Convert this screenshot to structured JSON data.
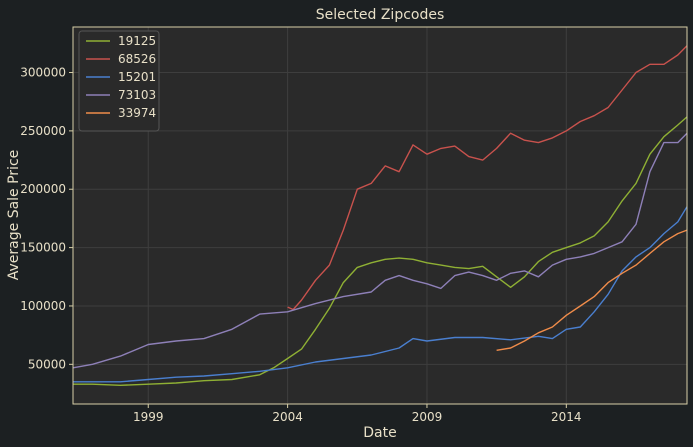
{
  "chart_data": {
    "type": "line",
    "title": "Selected Zipcodes",
    "xlabel": "Date",
    "ylabel": "Average Sale Price",
    "xlim": [
      1996.3,
      2018.33
    ],
    "ylim": [
      16000,
      339000
    ],
    "x_ticks": [
      1999,
      2004,
      2009,
      2014
    ],
    "y_ticks": [
      50000,
      100000,
      150000,
      200000,
      250000,
      300000
    ],
    "grid": true,
    "legend_position": "top-left",
    "series": [
      {
        "name": "19125",
        "color": "#8fb034",
        "x": [
          1996.3,
          1997,
          1998,
          1999,
          2000,
          2001,
          2002,
          2003,
          2003.5,
          2004,
          2004.5,
          2005,
          2005.5,
          2006,
          2006.5,
          2007,
          2007.5,
          2008,
          2008.5,
          2009,
          2009.5,
          2010,
          2010.5,
          2011,
          2011.5,
          2012,
          2012.5,
          2013,
          2013.5,
          2014,
          2014.5,
          2015,
          2015.5,
          2016,
          2016.5,
          2017,
          2017.5,
          2018,
          2018.33
        ],
        "y": [
          33000,
          33000,
          32000,
          33000,
          34000,
          36000,
          37000,
          41000,
          47000,
          55000,
          63000,
          80000,
          98000,
          120000,
          133000,
          137000,
          140000,
          141000,
          140000,
          137000,
          135000,
          133000,
          132000,
          134000,
          125000,
          116000,
          125000,
          138000,
          146000,
          150000,
          154000,
          160000,
          172000,
          190000,
          205000,
          230000,
          245000,
          255000,
          262000
        ]
      },
      {
        "name": "68526",
        "color": "#c8524d",
        "x": [
          2004,
          2004.2,
          2004.5,
          2005,
          2005.5,
          2006,
          2006.5,
          2007,
          2007.5,
          2008,
          2008.5,
          2009,
          2009.5,
          2010,
          2010.5,
          2011,
          2011.5,
          2012,
          2012.5,
          2013,
          2013.5,
          2014,
          2014.5,
          2015,
          2015.5,
          2016,
          2016.5,
          2017,
          2017.5,
          2018,
          2018.33
        ],
        "y": [
          99000,
          97000,
          105000,
          122000,
          135000,
          165000,
          200000,
          205000,
          220000,
          215000,
          238000,
          230000,
          235000,
          237000,
          228000,
          225000,
          235000,
          248000,
          242000,
          240000,
          244000,
          250000,
          258000,
          263000,
          270000,
          285000,
          300000,
          307000,
          307000,
          315000,
          323000
        ]
      },
      {
        "name": "15201",
        "color": "#4a7fcf",
        "x": [
          1996.3,
          1997,
          1998,
          1999,
          2000,
          2001,
          2002,
          2003,
          2004,
          2005,
          2006,
          2007,
          2008,
          2008.5,
          2009,
          2010,
          2011,
          2012,
          2013,
          2013.5,
          2014,
          2014.5,
          2015,
          2015.5,
          2016,
          2016.5,
          2017,
          2017.5,
          2018,
          2018.33
        ],
        "y": [
          35000,
          35000,
          35000,
          37000,
          39000,
          40000,
          42000,
          44000,
          47000,
          52000,
          55000,
          58000,
          64000,
          72000,
          70000,
          73000,
          73000,
          71000,
          74000,
          72000,
          80000,
          82000,
          95000,
          110000,
          130000,
          142000,
          150000,
          162000,
          172000,
          185000
        ]
      },
      {
        "name": "73103",
        "color": "#8e80b8",
        "x": [
          1996.3,
          1997,
          1998,
          1999,
          2000,
          2001,
          2002,
          2003,
          2004,
          2005,
          2006,
          2007,
          2007.5,
          2008,
          2008.5,
          2009,
          2009.5,
          2010,
          2010.5,
          2011,
          2011.5,
          2012,
          2012.5,
          2013,
          2013.5,
          2014,
          2014.5,
          2015,
          2015.5,
          2016,
          2016.5,
          2017,
          2017.5,
          2018,
          2018.33
        ],
        "y": [
          47000,
          50000,
          57000,
          67000,
          70000,
          72000,
          80000,
          93000,
          95000,
          102000,
          108000,
          112000,
          122000,
          126000,
          122000,
          119000,
          115000,
          126000,
          129000,
          126000,
          122000,
          128000,
          130000,
          125000,
          135000,
          140000,
          142000,
          145000,
          150000,
          155000,
          170000,
          215000,
          240000,
          240000,
          248000
        ]
      },
      {
        "name": "33974",
        "color": "#f08c4a",
        "x": [
          2011.5,
          2012,
          2012.5,
          2013,
          2013.5,
          2014,
          2014.5,
          2015,
          2015.5,
          2016,
          2016.5,
          2017,
          2017.5,
          2018,
          2018.33
        ],
        "y": [
          62000,
          64000,
          70000,
          77000,
          82000,
          92000,
          100000,
          108000,
          120000,
          128000,
          135000,
          145000,
          155000,
          162000,
          165000
        ]
      }
    ]
  }
}
